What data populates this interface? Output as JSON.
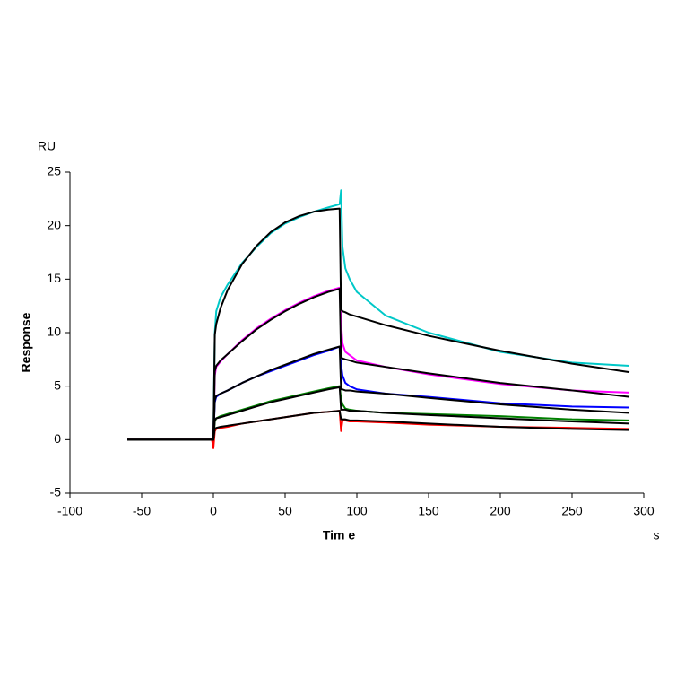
{
  "chart_data": {
    "type": "line",
    "y_unit": "RU",
    "y_label": "Response",
    "x_label": "Tim e",
    "x_unit": "s",
    "xlim": [
      -100,
      300
    ],
    "xticks": [
      -100,
      -50,
      0,
      50,
      100,
      150,
      200,
      250,
      300
    ],
    "ylim": [
      -5,
      25
    ],
    "yticks": [
      -5,
      0,
      5,
      10,
      15,
      20,
      25
    ],
    "x": [
      -60,
      -40,
      -20,
      -1,
      0,
      1,
      2,
      5,
      10,
      20,
      30,
      40,
      50,
      60,
      70,
      80,
      88,
      89,
      90,
      92,
      95,
      100,
      120,
      150,
      200,
      250,
      290
    ],
    "series": [
      {
        "color": "#00c8c8",
        "values": [
          0,
          0,
          0,
          0,
          0,
          10,
          12,
          13.3,
          14.5,
          16.5,
          18,
          19.3,
          20.2,
          20.8,
          21.3,
          21.7,
          22,
          23.3,
          18,
          16,
          15,
          13.8,
          11.6,
          10,
          8.2,
          7.2,
          6.9
        ]
      },
      {
        "color": "#ff00ff",
        "values": [
          0,
          0,
          0,
          0,
          0,
          6,
          6.8,
          7.3,
          8,
          9.3,
          10.4,
          11.3,
          12.1,
          12.8,
          13.4,
          13.9,
          14.2,
          11,
          9,
          8.2,
          7.9,
          7.4,
          6.8,
          6.1,
          5.2,
          4.6,
          4.4
        ]
      },
      {
        "color": "#0000ff",
        "values": [
          0,
          0,
          0,
          0,
          0,
          3.5,
          4,
          4.3,
          4.6,
          5.3,
          5.9,
          6.4,
          6.9,
          7.4,
          7.9,
          8.3,
          8.7,
          7,
          6,
          5.3,
          5,
          4.7,
          4.3,
          4,
          3.4,
          3.1,
          3
        ]
      },
      {
        "color": "#008000",
        "values": [
          0,
          0,
          0,
          0,
          0,
          1.7,
          2,
          2.2,
          2.4,
          2.8,
          3.2,
          3.6,
          3.9,
          4.2,
          4.5,
          4.8,
          5,
          3.8,
          3.3,
          2.9,
          2.8,
          2.7,
          2.5,
          2.4,
          2.2,
          1.9,
          1.8
        ]
      },
      {
        "color": "#ff0000",
        "values": [
          0,
          0,
          0,
          0,
          -0.8,
          0.8,
          1,
          1.1,
          1.2,
          1.5,
          1.7,
          1.9,
          2.1,
          2.3,
          2.5,
          2.6,
          2.7,
          0.8,
          1.8,
          1.8,
          1.7,
          1.7,
          1.6,
          1.4,
          1.2,
          1.1,
          1
        ]
      },
      {
        "color": "#000000",
        "values": [
          0,
          0,
          0,
          0,
          0,
          9.8,
          10.8,
          12.3,
          14,
          16.4,
          18.1,
          19.4,
          20.3,
          20.9,
          21.3,
          21.5,
          21.6,
          12.2,
          12,
          11.9,
          11.7,
          11.5,
          10.7,
          9.7,
          8.3,
          7.1,
          6.3
        ]
      },
      {
        "color": "#000000",
        "values": [
          0,
          0,
          0,
          0,
          0,
          6.4,
          6.9,
          7.4,
          8,
          9.2,
          10.3,
          11.2,
          12,
          12.7,
          13.3,
          13.8,
          14.1,
          7.7,
          7.6,
          7.5,
          7.4,
          7.2,
          6.8,
          6.2,
          5.3,
          4.6,
          4
        ]
      },
      {
        "color": "#000000",
        "values": [
          0,
          0,
          0,
          0,
          0,
          3.7,
          4.1,
          4.3,
          4.6,
          5.3,
          5.9,
          6.5,
          7,
          7.5,
          8,
          8.4,
          8.7,
          4.7,
          4.7,
          4.6,
          4.6,
          4.5,
          4.3,
          3.9,
          3.3,
          2.8,
          2.5
        ]
      },
      {
        "color": "#000000",
        "values": [
          0,
          0,
          0,
          0,
          0,
          1.8,
          2,
          2.1,
          2.3,
          2.7,
          3.1,
          3.5,
          3.8,
          4.1,
          4.4,
          4.7,
          4.9,
          2.8,
          2.8,
          2.8,
          2.7,
          2.7,
          2.5,
          2.3,
          2,
          1.7,
          1.5
        ]
      },
      {
        "color": "#000000",
        "values": [
          0,
          0,
          0,
          0,
          0,
          1,
          1.1,
          1.2,
          1.3,
          1.5,
          1.7,
          1.9,
          2.1,
          2.3,
          2.5,
          2.6,
          2.7,
          1.9,
          1.9,
          1.9,
          1.8,
          1.8,
          1.7,
          1.5,
          1.2,
          1,
          0.9
        ]
      }
    ]
  }
}
